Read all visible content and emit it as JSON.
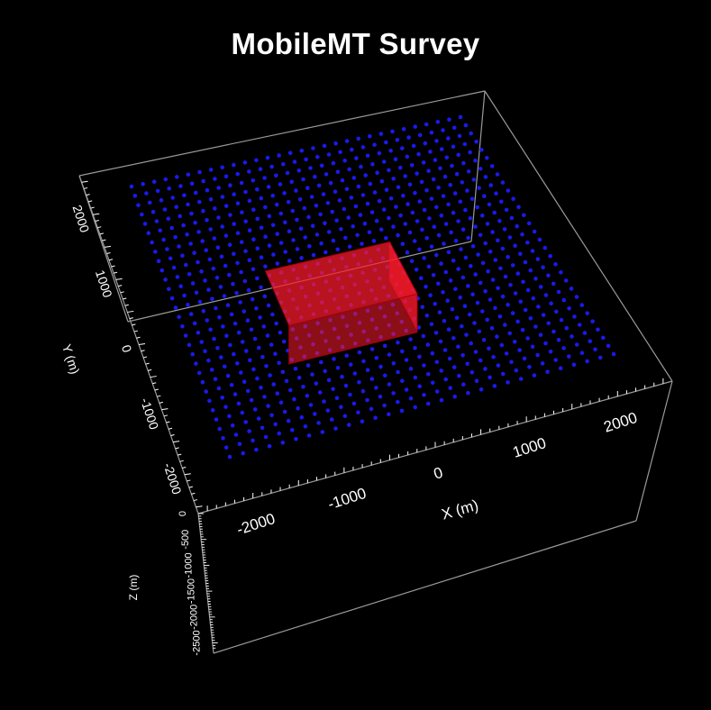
{
  "chart_data": {
    "type": "scatter3d",
    "title": "MobileMT Survey",
    "x_axis": {
      "label": "X (m)",
      "ticks": [
        "-2000",
        "-1000",
        "0",
        "1000",
        "2000"
      ]
    },
    "y_axis": {
      "label": "Y (m)",
      "ticks": [
        "2000",
        "1000",
        "0",
        "-1000",
        "-2000"
      ]
    },
    "z_axis": {
      "label": "Z (m)",
      "ticks": [
        "0",
        "-500",
        "-1000",
        "-1500",
        "-2000",
        "-2500"
      ]
    },
    "survey_grid": {
      "color": "#1a1aee",
      "x_range": [
        -2400,
        2400
      ],
      "y_range": [
        -2400,
        2400
      ],
      "nx": 30,
      "ny": 30,
      "z": 0
    },
    "target_body": {
      "color": "#ff1a2a",
      "x": [
        -1100,
        600
      ],
      "y": [
        -500,
        500
      ],
      "z": [
        -500,
        0
      ]
    },
    "background": "#000000",
    "box_color": "#9a9a9a"
  }
}
